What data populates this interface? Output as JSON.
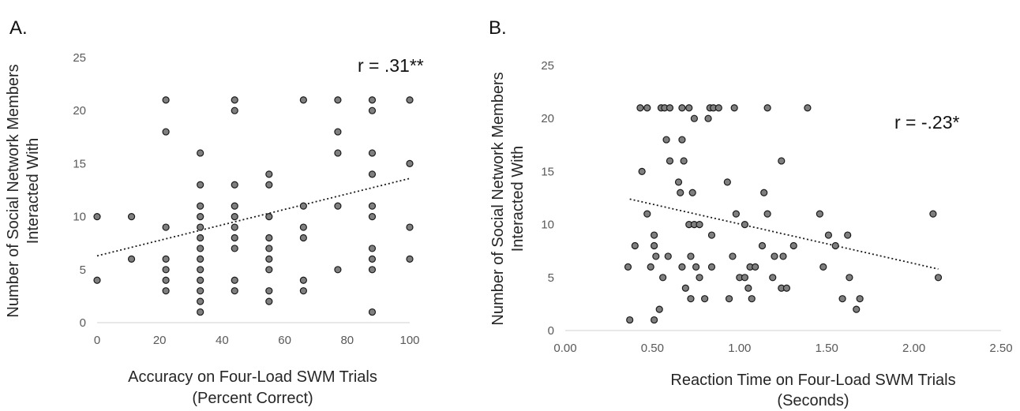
{
  "chart_data": [
    {
      "type": "scatter",
      "panel_label": "A.",
      "annotation": "r = .31**",
      "xlabel": [
        "Accuracy on Four-Load SWM Trials",
        "(Percent Correct)"
      ],
      "ylabel": [
        "Number of Social Network Members",
        "Interacted With"
      ],
      "xlim": [
        0,
        100
      ],
      "ylim": [
        0,
        25
      ],
      "x_ticks": [
        0,
        20,
        40,
        60,
        80,
        100
      ],
      "x_tick_labels": [
        "0",
        "20",
        "40",
        "60",
        "80",
        "100"
      ],
      "y_ticks": [
        0,
        5,
        10,
        15,
        20,
        25
      ],
      "y_tick_labels": [
        "0",
        "5",
        "10",
        "15",
        "20",
        "25"
      ],
      "trendline": {
        "x": [
          0,
          100
        ],
        "y": [
          6.3,
          13.6
        ]
      },
      "points": [
        [
          0,
          10
        ],
        [
          0,
          4
        ],
        [
          11,
          10
        ],
        [
          11,
          6
        ],
        [
          22,
          21
        ],
        [
          22,
          18
        ],
        [
          22,
          9
        ],
        [
          22,
          6
        ],
        [
          22,
          5
        ],
        [
          22,
          4
        ],
        [
          22,
          3
        ],
        [
          33,
          16
        ],
        [
          33,
          13
        ],
        [
          33,
          11
        ],
        [
          33,
          10
        ],
        [
          33,
          9
        ],
        [
          33,
          8
        ],
        [
          33,
          7
        ],
        [
          33,
          6
        ],
        [
          33,
          5
        ],
        [
          33,
          4
        ],
        [
          33,
          3
        ],
        [
          33,
          2
        ],
        [
          33,
          1
        ],
        [
          44,
          21
        ],
        [
          44,
          20
        ],
        [
          44,
          13
        ],
        [
          44,
          11
        ],
        [
          44,
          10
        ],
        [
          44,
          9
        ],
        [
          44,
          8
        ],
        [
          44,
          7
        ],
        [
          44,
          4
        ],
        [
          44,
          3
        ],
        [
          55,
          14
        ],
        [
          55,
          13
        ],
        [
          55,
          10
        ],
        [
          55,
          8
        ],
        [
          55,
          7
        ],
        [
          55,
          6
        ],
        [
          55,
          5
        ],
        [
          55,
          3
        ],
        [
          55,
          2
        ],
        [
          66,
          21
        ],
        [
          66,
          11
        ],
        [
          66,
          9
        ],
        [
          66,
          8
        ],
        [
          66,
          4
        ],
        [
          66,
          3
        ],
        [
          77,
          21
        ],
        [
          77,
          18
        ],
        [
          77,
          16
        ],
        [
          77,
          11
        ],
        [
          77,
          5
        ],
        [
          88,
          21
        ],
        [
          88,
          20
        ],
        [
          88,
          16
        ],
        [
          88,
          14
        ],
        [
          88,
          11
        ],
        [
          88,
          10
        ],
        [
          88,
          7
        ],
        [
          88,
          6
        ],
        [
          88,
          5
        ],
        [
          88,
          1
        ],
        [
          100,
          21
        ],
        [
          100,
          15
        ],
        [
          100,
          9
        ],
        [
          100,
          6
        ]
      ]
    },
    {
      "type": "scatter",
      "panel_label": "B.",
      "annotation": "r = -.23*",
      "xlabel": [
        "Reaction Time on Four-Load SWM Trials",
        "(Seconds)"
      ],
      "ylabel": [
        "Number of Social Network Members",
        "Interacted With"
      ],
      "xlim": [
        0,
        2.5
      ],
      "ylim": [
        0,
        25
      ],
      "x_ticks": [
        0,
        0.5,
        1,
        1.5,
        2,
        2.5
      ],
      "x_tick_labels": [
        "0.00",
        "0.50",
        "1.00",
        "1.50",
        "2.00",
        "2.50"
      ],
      "y_ticks": [
        0,
        5,
        10,
        15,
        20,
        25
      ],
      "y_tick_labels": [
        "0",
        "5",
        "10",
        "15",
        "20",
        "25"
      ],
      "trendline": {
        "x": [
          0.37,
          2.14
        ],
        "y": [
          12.4,
          5.8
        ]
      },
      "points": [
        [
          0.43,
          21
        ],
        [
          0.47,
          21
        ],
        [
          0.55,
          21
        ],
        [
          0.57,
          21
        ],
        [
          0.6,
          21
        ],
        [
          0.67,
          21
        ],
        [
          0.71,
          21
        ],
        [
          0.83,
          21
        ],
        [
          0.85,
          21
        ],
        [
          0.88,
          21
        ],
        [
          0.97,
          21
        ],
        [
          1.16,
          21
        ],
        [
          1.39,
          21
        ],
        [
          0.74,
          20
        ],
        [
          0.82,
          20
        ],
        [
          0.58,
          18
        ],
        [
          0.67,
          18
        ],
        [
          0.6,
          16
        ],
        [
          0.68,
          16
        ],
        [
          0.44,
          15
        ],
        [
          0.65,
          14
        ],
        [
          0.93,
          14
        ],
        [
          0.66,
          13
        ],
        [
          0.73,
          13
        ],
        [
          1.14,
          13
        ],
        [
          1.24,
          16
        ],
        [
          0.47,
          11
        ],
        [
          0.98,
          11
        ],
        [
          1.16,
          11
        ],
        [
          1.46,
          11
        ],
        [
          2.11,
          11
        ],
        [
          0.71,
          10
        ],
        [
          0.74,
          10
        ],
        [
          0.77,
          10
        ],
        [
          1.03,
          10
        ],
        [
          0.51,
          9
        ],
        [
          0.84,
          9
        ],
        [
          1.51,
          9
        ],
        [
          1.62,
          9
        ],
        [
          0.4,
          8
        ],
        [
          0.51,
          8
        ],
        [
          1.13,
          8
        ],
        [
          1.31,
          8
        ],
        [
          1.55,
          8
        ],
        [
          0.52,
          7
        ],
        [
          0.59,
          7
        ],
        [
          0.72,
          7
        ],
        [
          0.96,
          7
        ],
        [
          1.2,
          7
        ],
        [
          1.25,
          7
        ],
        [
          0.36,
          6
        ],
        [
          0.49,
          6
        ],
        [
          0.67,
          6
        ],
        [
          0.75,
          6
        ],
        [
          0.84,
          6
        ],
        [
          1.06,
          6
        ],
        [
          1.09,
          6
        ],
        [
          1.48,
          6
        ],
        [
          0.56,
          5
        ],
        [
          0.77,
          5
        ],
        [
          1.0,
          5
        ],
        [
          1.03,
          5
        ],
        [
          1.19,
          5
        ],
        [
          1.63,
          5
        ],
        [
          2.14,
          5
        ],
        [
          0.69,
          4
        ],
        [
          1.05,
          4
        ],
        [
          1.24,
          4
        ],
        [
          1.27,
          4
        ],
        [
          0.72,
          3
        ],
        [
          0.8,
          3
        ],
        [
          0.94,
          3
        ],
        [
          1.07,
          3
        ],
        [
          1.59,
          3
        ],
        [
          1.69,
          3
        ],
        [
          0.54,
          2
        ],
        [
          1.67,
          2
        ],
        [
          0.37,
          1
        ],
        [
          0.51,
          1
        ]
      ]
    }
  ]
}
